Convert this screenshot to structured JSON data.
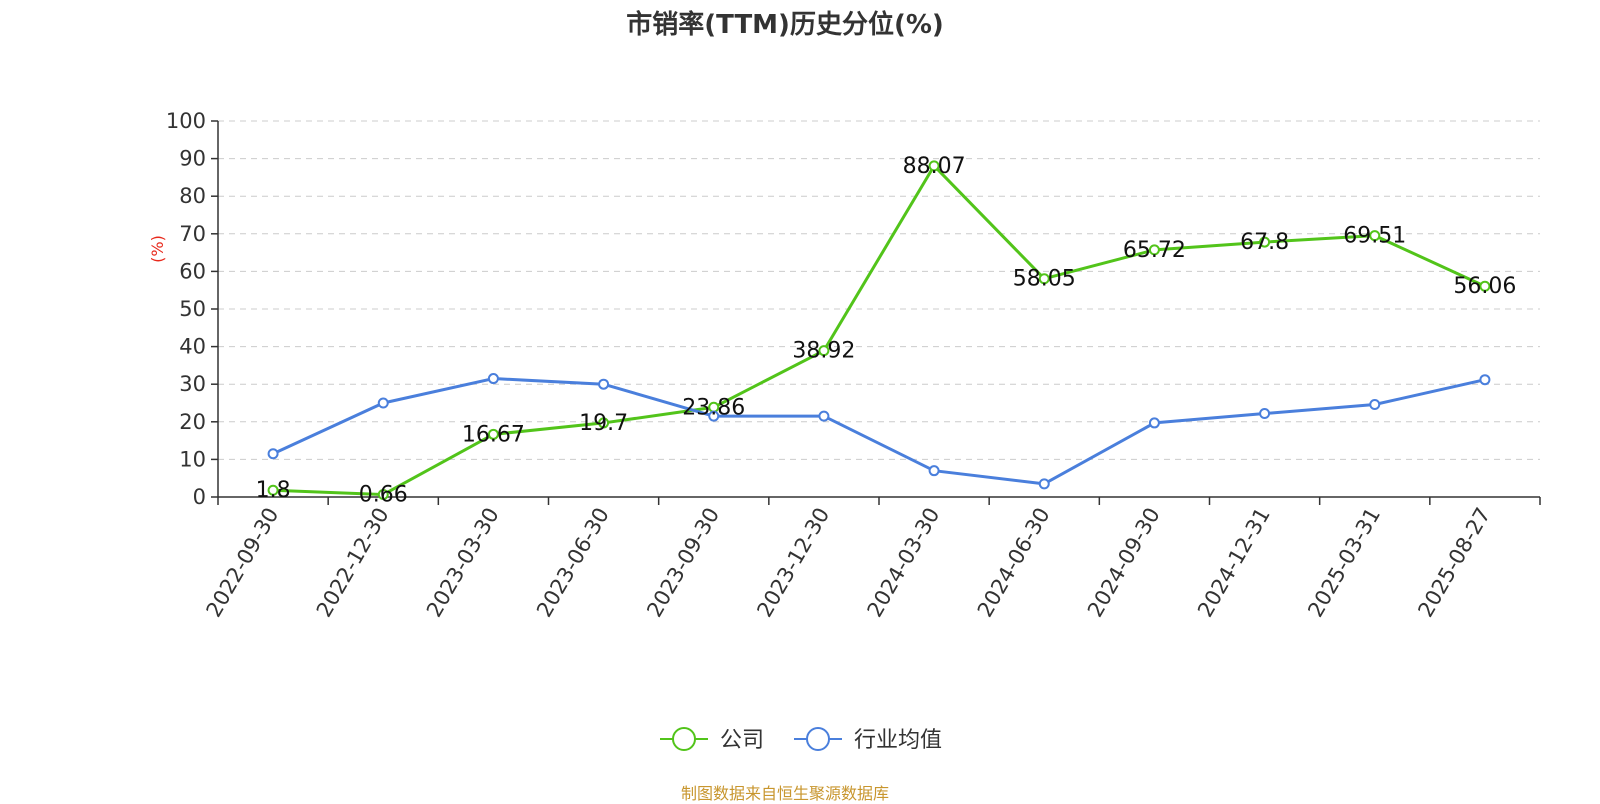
{
  "chart_data": {
    "type": "line",
    "title": "市销率(TTM)历史分位(%)",
    "ylabel": "(%)",
    "xlabel": "",
    "categories": [
      "2022-09-30",
      "2022-12-30",
      "2023-03-30",
      "2023-06-30",
      "2023-09-30",
      "2023-12-30",
      "2024-03-30",
      "2024-06-30",
      "2024-09-30",
      "2024-12-31",
      "2025-03-31",
      "2025-08-27"
    ],
    "ylim": [
      0,
      100
    ],
    "yticks": [
      0,
      10,
      20,
      30,
      40,
      50,
      60,
      70,
      80,
      90,
      100
    ],
    "grid": true,
    "legend_position": "bottom",
    "series": [
      {
        "name": "公司",
        "color": "#52c41a",
        "labeled": true,
        "values": [
          1.8,
          0.66,
          16.67,
          19.7,
          23.86,
          38.92,
          88.07,
          58.05,
          65.72,
          67.8,
          69.51,
          56.06
        ],
        "labels": [
          "1.8",
          "0.66",
          "16.67",
          "19.7",
          "23.86",
          "38.92",
          "88.07",
          "58.05",
          "65.72",
          "67.8",
          "69.51",
          "56.06"
        ]
      },
      {
        "name": "行业均值",
        "color": "#4a7fdc",
        "labeled": false,
        "values": [
          11.5,
          25.0,
          31.5,
          30.0,
          21.5,
          21.5,
          7.0,
          3.5,
          19.7,
          22.2,
          24.6,
          31.2
        ]
      }
    ]
  },
  "footer": {
    "source": "制图数据来自恒生聚源数据库"
  }
}
